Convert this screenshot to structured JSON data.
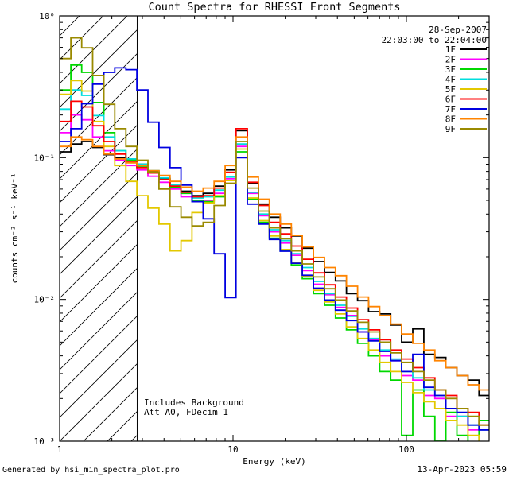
{
  "chart": {
    "title": "Count Spectra for RHESSI Front Segments",
    "date": "28-Sep-2007",
    "time_range": "22:03:00 to 22:04:00",
    "xlabel": "Energy (keV)",
    "ylabel": "counts cm⁻² s⁻¹ keV⁻¹",
    "note_line1": "Includes Background",
    "note_line2": "Att A0, FDecim 1",
    "footer_left": "Generated by hsi_min_spectra_plot.pro",
    "footer_right": "13-Apr-2023 05:59",
    "date_color": "#000088",
    "axis_color": "#000000"
  },
  "chart_data": {
    "type": "line",
    "style": "histogram-step",
    "x_scale": "log",
    "y_scale": "log",
    "xlim": [
      1,
      300
    ],
    "ylim": [
      0.001,
      1
    ],
    "x_ticks": [
      1,
      10,
      100
    ],
    "x_tick_labels": [
      "1",
      "10",
      "100"
    ],
    "y_ticks": [
      1,
      0.1,
      0.01,
      0.001
    ],
    "y_tick_labels": [
      "10⁰",
      "10⁻¹",
      "10⁻²",
      "10⁻³"
    ],
    "grid": false,
    "legend_position": "upper right",
    "hatched_region_kev": [
      1,
      2.8
    ],
    "energies_kev": [
      1.0,
      1.16,
      1.34,
      1.55,
      1.8,
      2.08,
      2.41,
      2.79,
      3.23,
      3.74,
      4.33,
      5.01,
      5.8,
      6.72,
      7.78,
      9.01,
      10.4,
      12.1,
      14.0,
      16.2,
      18.7,
      21.7,
      25.1,
      29.1,
      33.7,
      39.0,
      45.1,
      52.3,
      60.5,
      70.1,
      81.1,
      93.9,
      108.8,
      126.0,
      145.9,
      168.9,
      195.6,
      226.5,
      262.3,
      303.7
    ],
    "series": [
      {
        "name": "1F",
        "color": "#000000",
        "values": [
          0.11,
          0.125,
          0.13,
          0.118,
          0.105,
          0.1,
          0.096,
          0.09,
          0.08,
          0.071,
          0.064,
          0.058,
          0.054,
          0.056,
          0.063,
          0.082,
          0.155,
          0.066,
          0.047,
          0.038,
          0.032,
          0.028,
          0.023,
          0.0185,
          0.0155,
          0.0135,
          0.011,
          0.0098,
          0.0082,
          0.0079,
          0.0066,
          0.005,
          0.0062,
          0.0041,
          0.0039,
          0.0033,
          0.0029,
          0.0027,
          0.0021,
          0.0015
        ]
      },
      {
        "name": "2F",
        "color": "#ff00ff",
        "values": [
          0.15,
          0.2,
          0.185,
          0.14,
          0.112,
          0.096,
          0.088,
          0.082,
          0.074,
          0.067,
          0.06,
          0.053,
          0.049,
          0.05,
          0.056,
          0.071,
          0.12,
          0.056,
          0.039,
          0.03,
          0.025,
          0.0205,
          0.016,
          0.0128,
          0.0108,
          0.0088,
          0.0077,
          0.0059,
          0.0052,
          0.004,
          0.0037,
          0.0029,
          0.0027,
          0.0021,
          0.002,
          0.0015,
          0.0015,
          0.0012,
          0.0012,
          0.0009
        ]
      },
      {
        "name": "3F",
        "color": "#00d800",
        "values": [
          0.3,
          0.45,
          0.4,
          0.245,
          0.15,
          0.112,
          0.096,
          0.086,
          0.078,
          0.07,
          0.062,
          0.056,
          0.05,
          0.049,
          0.053,
          0.069,
          0.11,
          0.051,
          0.035,
          0.027,
          0.022,
          0.0175,
          0.014,
          0.011,
          0.0091,
          0.0074,
          0.0061,
          0.0049,
          0.004,
          0.0031,
          0.0027,
          0.0011,
          0.0023,
          0.0015,
          0.001,
          0.0016,
          0.0011,
          0.0008,
          0.0014,
          0.0007
        ]
      },
      {
        "name": "4F",
        "color": "#00dede",
        "values": [
          0.22,
          0.3,
          0.275,
          0.198,
          0.14,
          0.112,
          0.098,
          0.09,
          0.081,
          0.072,
          0.064,
          0.057,
          0.052,
          0.053,
          0.059,
          0.073,
          0.125,
          0.057,
          0.04,
          0.031,
          0.026,
          0.021,
          0.0168,
          0.0134,
          0.011,
          0.0091,
          0.0076,
          0.0062,
          0.0053,
          0.0044,
          0.0038,
          0.0031,
          0.0028,
          0.0023,
          0.0021,
          0.0017,
          0.0015,
          0.0013,
          0.0012,
          0.001
        ]
      },
      {
        "name": "5F",
        "color": "#e3c800",
        "values": [
          0.28,
          0.35,
          0.295,
          0.18,
          0.12,
          0.088,
          0.068,
          0.054,
          0.044,
          0.034,
          0.022,
          0.026,
          0.041,
          0.048,
          0.054,
          0.069,
          0.115,
          0.052,
          0.036,
          0.028,
          0.0225,
          0.0182,
          0.0146,
          0.0116,
          0.0096,
          0.0079,
          0.0064,
          0.0053,
          0.0044,
          0.0036,
          0.0031,
          0.0026,
          0.0022,
          0.0019,
          0.0017,
          0.0014,
          0.0013,
          0.0011,
          0.0009,
          0.0008
        ]
      },
      {
        "name": "6F",
        "color": "#ff0000",
        "values": [
          0.18,
          0.25,
          0.228,
          0.168,
          0.13,
          0.106,
          0.093,
          0.085,
          0.078,
          0.07,
          0.063,
          0.057,
          0.053,
          0.054,
          0.061,
          0.079,
          0.16,
          0.067,
          0.046,
          0.035,
          0.029,
          0.0238,
          0.0192,
          0.0154,
          0.0127,
          0.0104,
          0.0087,
          0.0072,
          0.0061,
          0.0052,
          0.0044,
          0.0038,
          0.0033,
          0.0028,
          0.0023,
          0.0021,
          0.0017,
          0.0016,
          0.0013,
          0.0012
        ]
      },
      {
        "name": "7F",
        "color": "#0000e0",
        "values": [
          0.13,
          0.16,
          0.24,
          0.33,
          0.4,
          0.43,
          0.418,
          0.3,
          0.178,
          0.118,
          0.085,
          0.064,
          0.049,
          0.037,
          0.021,
          0.0103,
          0.1,
          0.047,
          0.034,
          0.0265,
          0.0219,
          0.018,
          0.0148,
          0.012,
          0.0099,
          0.0084,
          0.0071,
          0.0059,
          0.0051,
          0.0043,
          0.0037,
          0.0031,
          0.0041,
          0.0024,
          0.0021,
          0.0017,
          0.0016,
          0.0013,
          0.0012,
          0.0011
        ]
      },
      {
        "name": "8F",
        "color": "#ff8400",
        "values": [
          0.12,
          0.14,
          0.134,
          0.12,
          0.106,
          0.098,
          0.092,
          0.088,
          0.081,
          0.075,
          0.068,
          0.062,
          0.058,
          0.061,
          0.068,
          0.088,
          0.14,
          0.073,
          0.051,
          0.04,
          0.034,
          0.0283,
          0.0235,
          0.0198,
          0.0168,
          0.0147,
          0.0124,
          0.0104,
          0.0089,
          0.0077,
          0.0067,
          0.0057,
          0.0049,
          0.0044,
          0.0037,
          0.0033,
          0.0029,
          0.0025,
          0.0023,
          0.0019
        ]
      },
      {
        "name": "9F",
        "color": "#9a8a00",
        "values": [
          0.5,
          0.7,
          0.595,
          0.38,
          0.238,
          0.16,
          0.12,
          0.096,
          0.079,
          0.06,
          0.045,
          0.038,
          0.033,
          0.035,
          0.046,
          0.066,
          0.13,
          0.061,
          0.042,
          0.032,
          0.0268,
          0.022,
          0.0178,
          0.0144,
          0.0119,
          0.0099,
          0.0083,
          0.0069,
          0.0059,
          0.005,
          0.0042,
          0.0036,
          0.0031,
          0.0027,
          0.0023,
          0.002,
          0.0017,
          0.0015,
          0.0013,
          0.0012
        ]
      }
    ]
  }
}
